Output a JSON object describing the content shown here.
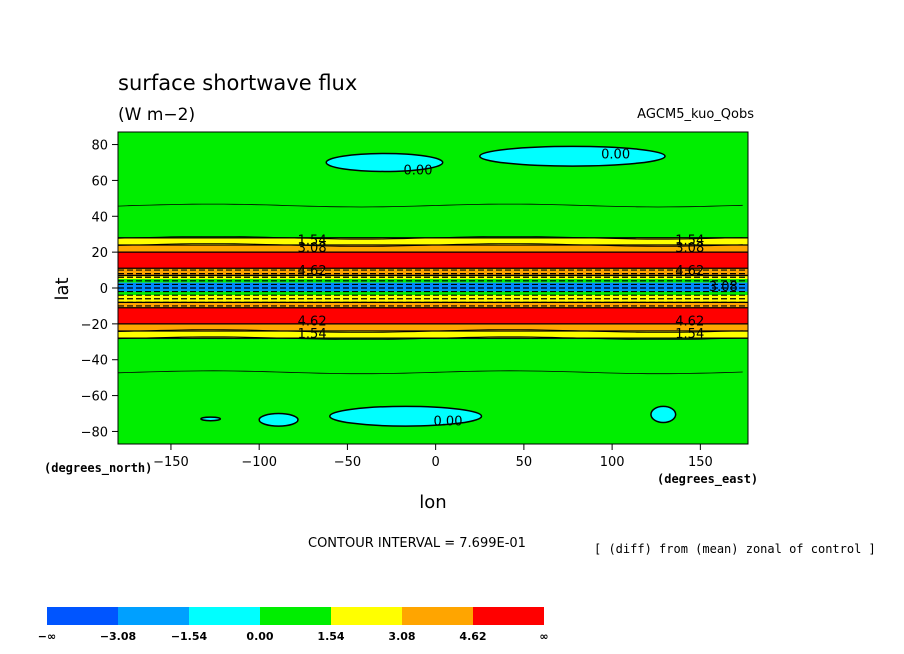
{
  "chart_data": {
    "type": "heatmap",
    "title": "surface shortwave flux",
    "units": "(W m−2)",
    "model_label": "AGCM5_kuo_Qobs",
    "xlabel": "lon",
    "ylabel": "lat",
    "x_unit_label": "(degrees_east)",
    "y_unit_label": "(degrees_north)",
    "xlim": [
      -180,
      177
    ],
    "ylim": [
      -87,
      87
    ],
    "x_ticks": [
      -150,
      -100,
      -50,
      0,
      50,
      100,
      150
    ],
    "x_tick_labels": [
      "−150",
      "−100",
      "−50",
      "0",
      "50",
      "100",
      "150"
    ],
    "y_ticks": [
      -80,
      -60,
      -40,
      -20,
      0,
      20,
      40,
      60,
      80
    ],
    "y_tick_labels": [
      "−80",
      "−60",
      "−40",
      "−20",
      "0",
      "20",
      "40",
      "60",
      "80"
    ],
    "contour_interval_text": "CONTOUR INTERVAL = 7.699E-01",
    "note": "[ (diff) from (mean) zonal of control ]",
    "color_levels": [
      {
        "label": "−∞",
        "color": "#0055ff"
      },
      {
        "label": "−3.08",
        "color": "#00a0ff"
      },
      {
        "label": "−1.54",
        "color": "#00ffff"
      },
      {
        "label": "0.00",
        "color": "#00ee00"
      },
      {
        "label": "1.54",
        "color": "#00ee00"
      },
      {
        "label": "3.08",
        "color": "#ffff00"
      },
      {
        "label": "4.62",
        "color": "#ffa500"
      },
      {
        "label": "∞",
        "color": "#ff0000"
      }
    ],
    "colorbar_colors": [
      "#0055ff",
      "#00a0ff",
      "#00ffff",
      "#00ee00",
      "#ffff00",
      "#ffa500",
      "#ff0000"
    ],
    "bands": [
      {
        "lat_from": 87,
        "lat_to": 28,
        "color": "#00ee00"
      },
      {
        "lat_from": 28,
        "lat_to": 24,
        "color": "#ffff00"
      },
      {
        "lat_from": 24,
        "lat_to": 20,
        "color": "#ffa500"
      },
      {
        "lat_from": 20,
        "lat_to": 11,
        "color": "#ff0000"
      },
      {
        "lat_from": 11,
        "lat_to": 7,
        "color": "#ffa500"
      },
      {
        "lat_from": 7,
        "lat_to": 5,
        "color": "#ffff00"
      },
      {
        "lat_from": 5,
        "lat_to": 3,
        "color": "#00ee00"
      },
      {
        "lat_from": 3,
        "lat_to": -2,
        "color": "#0088ff"
      },
      {
        "lat_from": -2,
        "lat_to": -4,
        "color": "#00ee00"
      },
      {
        "lat_from": -4,
        "lat_to": -8,
        "color": "#ffff00"
      },
      {
        "lat_from": -8,
        "lat_to": -11,
        "color": "#ffa500"
      },
      {
        "lat_from": -11,
        "lat_to": -20,
        "color": "#ff0000"
      },
      {
        "lat_from": -20,
        "lat_to": -24,
        "color": "#ffa500"
      },
      {
        "lat_from": -24,
        "lat_to": -28,
        "color": "#ffff00"
      },
      {
        "lat_from": -28,
        "lat_to": -87,
        "color": "#00ee00"
      }
    ],
    "negative_patches": [
      {
        "lon": [
          -62,
          4
        ],
        "lat": [
          75,
          65
        ],
        "color": "#00ffff"
      },
      {
        "lon": [
          25,
          130
        ],
        "lat": [
          79,
          68
        ],
        "color": "#00ffff"
      },
      {
        "lon": [
          -60,
          26
        ],
        "lat": [
          -66,
          -77
        ],
        "color": "#00ffff"
      },
      {
        "lon": [
          -100,
          -78
        ],
        "lat": [
          -70,
          -77
        ],
        "color": "#00ffff"
      },
      {
        "lon": [
          -133,
          -122
        ],
        "lat": [
          -72,
          -74
        ],
        "color": "#00ffff"
      },
      {
        "lon": [
          122,
          136
        ],
        "lat": [
          -66,
          -75
        ],
        "color": "#00ffff"
      }
    ],
    "thin_contour_lats": [
      46,
      28,
      24,
      -24,
      -28,
      -47
    ],
    "contour_labels": [
      {
        "text": "0.00",
        "lon": -10,
        "lat": 66
      },
      {
        "text": "0.00",
        "lon": 102,
        "lat": 75
      },
      {
        "text": "0.00",
        "lon": 7,
        "lat": -74
      },
      {
        "text": "1.54",
        "lon": -70,
        "lat": 27
      },
      {
        "text": "3.08",
        "lon": -70,
        "lat": 23
      },
      {
        "text": "4.62",
        "lon": -70,
        "lat": 10
      },
      {
        "text": "1.54",
        "lon": 144,
        "lat": 27
      },
      {
        "text": "3.08",
        "lon": 144,
        "lat": 23
      },
      {
        "text": "4.62",
        "lon": 144,
        "lat": 10
      },
      {
        "text": "4.62",
        "lon": -70,
        "lat": -18
      },
      {
        "text": "1.54",
        "lon": -70,
        "lat": -25
      },
      {
        "text": "4.62",
        "lon": 144,
        "lat": -18
      },
      {
        "text": "1.54",
        "lon": 144,
        "lat": -25
      },
      {
        "text": "3.08",
        "lon": 163,
        "lat": 1
      }
    ]
  }
}
